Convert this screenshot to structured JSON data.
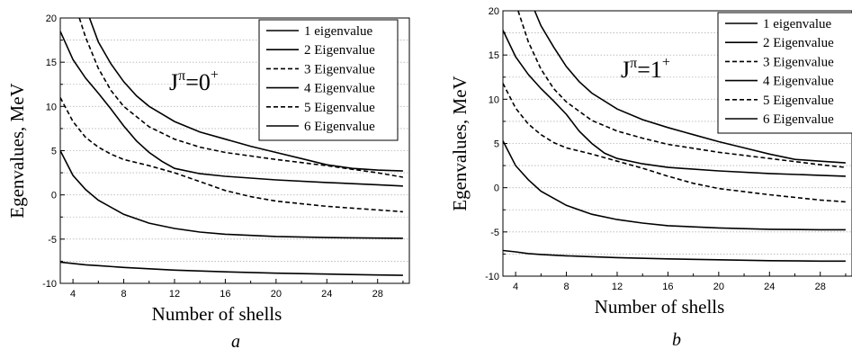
{
  "chart_data": [
    {
      "type": "line",
      "panel_label": "a",
      "annotation": {
        "base": "J",
        "sup_pi": "π",
        "equals": "=0",
        "sup_parity": "+"
      },
      "xlabel": "Number of shells",
      "ylabel": "Egenvalues, MeV",
      "xlim": [
        3,
        30.5
      ],
      "ylim": [
        -10,
        20
      ],
      "xticks": [
        4,
        8,
        12,
        16,
        20,
        24,
        28
      ],
      "yticks": [
        -10,
        -5,
        0,
        5,
        10,
        15,
        20
      ],
      "grid": "horizontal dotted",
      "legend_position": "top-right",
      "series": [
        {
          "name": "1 eigenvalue",
          "style": "solid",
          "x": [
            3,
            4,
            5,
            6,
            8,
            10,
            12,
            16,
            20,
            24,
            28,
            30
          ],
          "y": [
            -7.6,
            -7.75,
            -7.9,
            -8.0,
            -8.2,
            -8.35,
            -8.5,
            -8.7,
            -8.85,
            -8.95,
            -9.05,
            -9.1
          ]
        },
        {
          "name": "2 Eigenvalue",
          "style": "solid",
          "x": [
            3,
            4,
            5,
            6,
            8,
            10,
            12,
            14,
            16,
            20,
            24,
            28,
            30
          ],
          "y": [
            5.0,
            2.2,
            0.6,
            -0.6,
            -2.2,
            -3.2,
            -3.8,
            -4.2,
            -4.45,
            -4.7,
            -4.82,
            -4.88,
            -4.9
          ]
        },
        {
          "name": "3 Eigenvalue",
          "style": "dashed",
          "x": [
            3,
            4,
            5,
            6,
            7,
            8,
            10,
            12,
            14,
            16,
            18,
            20,
            24,
            28,
            30
          ],
          "y": [
            11.0,
            8.3,
            6.5,
            5.4,
            4.6,
            4.0,
            3.3,
            2.5,
            1.5,
            0.5,
            -0.2,
            -0.7,
            -1.3,
            -1.7,
            -1.9
          ]
        },
        {
          "name": "4 Eigenvalue",
          "style": "solid",
          "x": [
            3,
            4,
            5,
            6,
            7,
            8,
            9,
            10,
            11,
            12,
            14,
            16,
            20,
            24,
            28,
            30
          ],
          "y": [
            18.5,
            15.3,
            13.2,
            11.5,
            9.7,
            7.8,
            6.1,
            4.8,
            3.8,
            3.0,
            2.4,
            2.1,
            1.7,
            1.4,
            1.15,
            1.0
          ]
        },
        {
          "name": "5 Eigenvalue",
          "style": "dashed",
          "x": [
            4.5,
            5,
            6,
            7,
            8,
            10,
            12,
            14,
            16,
            20,
            24,
            28,
            30
          ],
          "y": [
            20.0,
            17.8,
            14.3,
            11.8,
            10.0,
            7.7,
            6.3,
            5.4,
            4.8,
            4.0,
            3.3,
            2.5,
            2.0
          ]
        },
        {
          "name": "6 Eigenvalue",
          "style": "solid",
          "x": [
            5.3,
            6,
            7,
            8,
            9,
            10,
            12,
            14,
            16,
            18,
            20,
            22,
            24,
            26,
            28,
            30
          ],
          "y": [
            20.0,
            17.3,
            14.8,
            12.8,
            11.2,
            10.0,
            8.3,
            7.1,
            6.3,
            5.5,
            4.8,
            4.1,
            3.4,
            3.0,
            2.8,
            2.7
          ]
        }
      ]
    },
    {
      "type": "line",
      "panel_label": "b",
      "annotation": {
        "base": "J",
        "sup_pi": "π",
        "equals": "=1",
        "sup_parity": "+"
      },
      "xlabel": "Number of shells",
      "ylabel": "Egenvalues, MeV",
      "xlim": [
        3,
        30.5
      ],
      "ylim": [
        -10,
        20
      ],
      "xticks": [
        4,
        8,
        12,
        16,
        20,
        24,
        28
      ],
      "yticks": [
        -10,
        -5,
        0,
        5,
        10,
        15,
        20
      ],
      "grid": "horizontal dotted",
      "legend_position": "top-right",
      "series": [
        {
          "name": "1 eigenvalue",
          "style": "solid",
          "x": [
            3,
            4,
            5,
            6,
            8,
            10,
            12,
            16,
            20,
            24,
            28,
            30
          ],
          "y": [
            -7.1,
            -7.25,
            -7.45,
            -7.55,
            -7.7,
            -7.8,
            -7.9,
            -8.05,
            -8.15,
            -8.25,
            -8.3,
            -8.3
          ]
        },
        {
          "name": "2 Eigenvalue",
          "style": "solid",
          "x": [
            3,
            4,
            5,
            6,
            8,
            10,
            12,
            14,
            16,
            20,
            24,
            28,
            30
          ],
          "y": [
            5.3,
            2.5,
            0.9,
            -0.4,
            -2.0,
            -3.0,
            -3.6,
            -4.0,
            -4.3,
            -4.55,
            -4.7,
            -4.75,
            -4.75
          ]
        },
        {
          "name": "3 Eigenvalue",
          "style": "dashed",
          "x": [
            3,
            4,
            5,
            6,
            7,
            8,
            10,
            12,
            14,
            16,
            18,
            20,
            24,
            28,
            30
          ],
          "y": [
            11.8,
            9.0,
            7.2,
            6.0,
            5.1,
            4.5,
            3.8,
            3.0,
            2.2,
            1.3,
            0.5,
            -0.1,
            -0.8,
            -1.4,
            -1.6
          ]
        },
        {
          "name": "4 Eigenvalue",
          "style": "solid",
          "x": [
            3,
            4,
            5,
            6,
            7,
            8,
            9,
            10,
            11,
            12,
            14,
            16,
            20,
            24,
            28,
            30
          ],
          "y": [
            17.8,
            14.8,
            12.8,
            11.2,
            9.8,
            8.3,
            6.4,
            5.0,
            3.9,
            3.3,
            2.7,
            2.3,
            1.9,
            1.6,
            1.4,
            1.3
          ]
        },
        {
          "name": "5 Eigenvalue",
          "style": "dashed",
          "x": [
            4.2,
            5,
            6,
            7,
            8,
            10,
            12,
            14,
            16,
            20,
            24,
            28,
            30
          ],
          "y": [
            20.0,
            16.5,
            13.4,
            11.2,
            9.7,
            7.6,
            6.4,
            5.6,
            4.9,
            4.0,
            3.3,
            2.6,
            2.3
          ]
        },
        {
          "name": "6 Eigenvalue",
          "style": "solid",
          "x": [
            5.5,
            6,
            7,
            8,
            9,
            10,
            12,
            14,
            16,
            18,
            20,
            22,
            24,
            26,
            28,
            30
          ],
          "y": [
            20.0,
            18.3,
            15.9,
            13.7,
            12.0,
            10.7,
            8.9,
            7.7,
            6.8,
            6.0,
            5.2,
            4.5,
            3.8,
            3.2,
            3.0,
            2.8
          ]
        }
      ]
    }
  ]
}
